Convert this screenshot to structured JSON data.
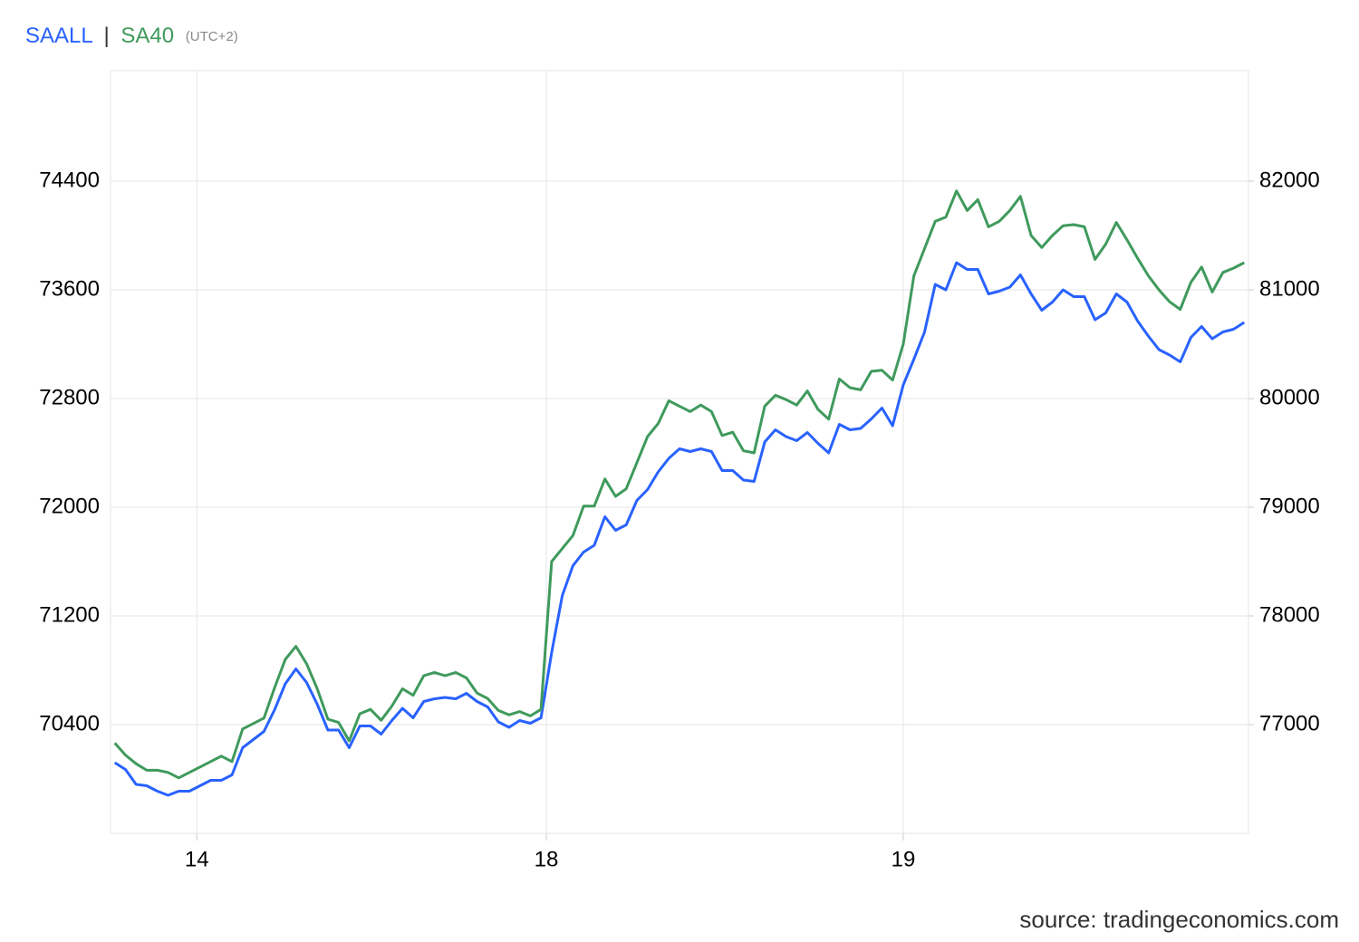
{
  "chart_data": {
    "type": "line",
    "title_separator": "|",
    "timezone": "(UTC+2)",
    "source": "source: tradingeconomics.com",
    "x": [
      0,
      1,
      2,
      3,
      4,
      5,
      6,
      7,
      8,
      9,
      10,
      11,
      12,
      13,
      14,
      15,
      16,
      17,
      18,
      19,
      20,
      21,
      22,
      23,
      24,
      25,
      26,
      27,
      28,
      29,
      30,
      31,
      32,
      33,
      34,
      35,
      36,
      37,
      38,
      39,
      40,
      41,
      42,
      43,
      44,
      45,
      46,
      47,
      48,
      49,
      50,
      51,
      52,
      53,
      54,
      55,
      56,
      57,
      58,
      59,
      60,
      61,
      62,
      63,
      64,
      65,
      66,
      67,
      68,
      69,
      70,
      71,
      72,
      73,
      74,
      75,
      76,
      77,
      78,
      79,
      80,
      81,
      82,
      83,
      84,
      85,
      86,
      87,
      88,
      89,
      90,
      91,
      92,
      93,
      94,
      95,
      96,
      97,
      98,
      99,
      100,
      101,
      102,
      103,
      104,
      105,
      106
    ],
    "xlim": [
      -0.4,
      106.4
    ],
    "xticks": [
      {
        "value": 7.7,
        "label": "14"
      },
      {
        "value": 40.5,
        "label": "18"
      },
      {
        "value": 74.0,
        "label": "19"
      }
    ],
    "ylim": [
      69600,
      75200
    ],
    "yticks": [
      70400,
      71200,
      72000,
      72800,
      73600,
      74400
    ],
    "y2lim": [
      76000,
      83000
    ],
    "y2ticks": [
      77000,
      78000,
      79000,
      80000,
      81000,
      82000
    ],
    "grid": true,
    "series": [
      {
        "name": "SAALL",
        "color": "#2962ff",
        "values": [
          70120,
          70070,
          69960,
          69950,
          69910,
          69880,
          69910,
          69910,
          69950,
          69990,
          69990,
          70030,
          70230,
          70290,
          70350,
          70510,
          70700,
          70810,
          70710,
          70550,
          70360,
          70360,
          70230,
          70390,
          70390,
          70330,
          70430,
          70520,
          70450,
          70570,
          70590,
          70600,
          70590,
          70630,
          70570,
          70530,
          70420,
          70380,
          70430,
          70410,
          70450,
          70930,
          71350,
          71570,
          71670,
          71720,
          71930,
          71830,
          71870,
          72050,
          72130,
          72260,
          72360,
          72430,
          72410,
          72430,
          72410,
          72270,
          72270,
          72200,
          72190,
          72480,
          72570,
          72520,
          72490,
          72550,
          72470,
          72400,
          72610,
          72570,
          72580,
          72650,
          72730,
          72600,
          72900,
          73090,
          73290,
          73640,
          73600,
          73800,
          73750,
          73750,
          73570,
          73590,
          73620,
          73710,
          73570,
          73450,
          73510,
          73600,
          73550,
          73550,
          73380,
          73430,
          73570,
          73510,
          73370,
          73260,
          73160,
          73120,
          73070,
          73250,
          73330,
          73240,
          73290,
          73310,
          73360
        ]
      },
      {
        "name": "SA40",
        "color": "#3f9a5c",
        "axis": "y2",
        "values": [
          76830,
          76720,
          76640,
          76580,
          76580,
          76560,
          76510,
          76560,
          76610,
          76660,
          76710,
          76660,
          76960,
          77010,
          77060,
          77340,
          77600,
          77720,
          77560,
          77330,
          77050,
          77020,
          76850,
          77100,
          77140,
          77040,
          77170,
          77330,
          77270,
          77450,
          77480,
          77450,
          77480,
          77430,
          77290,
          77240,
          77130,
          77090,
          77120,
          77080,
          77140,
          78500,
          78620,
          78740,
          79010,
          79010,
          79260,
          79100,
          79170,
          79410,
          79650,
          79770,
          79980,
          79930,
          79880,
          79940,
          79880,
          79660,
          79690,
          79520,
          79500,
          79930,
          80030,
          79990,
          79940,
          80070,
          79900,
          79810,
          80180,
          80100,
          80080,
          80250,
          80260,
          80170,
          80500,
          81130,
          81380,
          81630,
          81670,
          81910,
          81730,
          81830,
          81580,
          81630,
          81730,
          81860,
          81500,
          81390,
          81500,
          81590,
          81600,
          81580,
          81280,
          81420,
          81620,
          81460,
          81290,
          81130,
          81000,
          80890,
          80820,
          81070,
          81210,
          80980,
          81160,
          81200,
          81250
        ]
      }
    ]
  }
}
